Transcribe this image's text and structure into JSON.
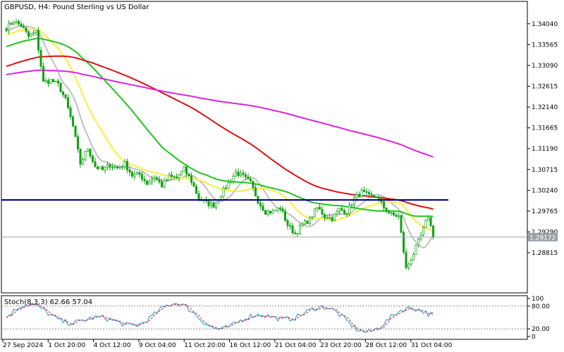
{
  "window_title": "GBPUSD, H4:  Pound Sterling vs US Dollar",
  "oscillator_title": "Stoch(8,3,3) 62.66 57.04",
  "colors": {
    "background": "#ffffff",
    "bull": "#15a315",
    "bear": "#15a315",
    "ma_fast": "#c0c0c0",
    "ma_yellow": "#ffeb3b",
    "ma_green": "#22c41f",
    "ma_red": "#dd1111",
    "ma_magenta": "#dd22dd",
    "support_line": "#000080",
    "price_line": "#9aa0a6",
    "stoch_main": "#1f8fd6",
    "stoch_signal": "#dd2222"
  },
  "chart_data": {
    "type": "candlestick",
    "symbol": "GBPUSD",
    "timeframe": "H4",
    "ylim": [
      1.279,
      1.3455
    ],
    "y_ticks": [
      "1.34040",
      "1.33565",
      "1.33090",
      "1.32615",
      "1.32140",
      "1.31665",
      "1.31190",
      "1.30715",
      "1.30240",
      "1.29765",
      "1.29290",
      "1.28815"
    ],
    "x_ticks": [
      "27 Sep 2024",
      "1 Oct 20:00",
      "4 Oct 12:00",
      "9 Oct 04:00",
      "11 Oct 20:00",
      "16 Oct 12:00",
      "21 Oct 04:00",
      "23 Oct 20:00",
      "28 Oct 12:00",
      "31 Oct 04:00"
    ],
    "current_price": "1.29172",
    "support_level": 1.3002,
    "anchors": [
      [
        0,
        1.3395
      ],
      [
        3,
        1.341
      ],
      [
        6,
        1.34
      ],
      [
        9,
        1.3375
      ],
      [
        12,
        1.3385
      ],
      [
        15,
        1.327
      ],
      [
        18,
        1.3275
      ],
      [
        21,
        1.3265
      ],
      [
        24,
        1.323
      ],
      [
        27,
        1.317
      ],
      [
        30,
        1.3085
      ],
      [
        33,
        1.312
      ],
      [
        36,
        1.3078
      ],
      [
        39,
        1.307
      ],
      [
        42,
        1.3082
      ],
      [
        45,
        1.3075
      ],
      [
        48,
        1.3085
      ],
      [
        51,
        1.3058
      ],
      [
        54,
        1.306
      ],
      [
        57,
        1.304
      ],
      [
        60,
        1.3055
      ],
      [
        63,
        1.3035
      ],
      [
        66,
        1.3055
      ],
      [
        69,
        1.3052
      ],
      [
        72,
        1.3072
      ],
      [
        75,
        1.3045
      ],
      [
        78,
        1.3005
      ],
      [
        81,
        1.2995
      ],
      [
        84,
        1.299
      ],
      [
        87,
        1.3015
      ],
      [
        90,
        1.304
      ],
      [
        93,
        1.3065
      ],
      [
        96,
        1.3055
      ],
      [
        99,
        1.304
      ],
      [
        102,
        1.3
      ],
      [
        105,
        1.2975
      ],
      [
        108,
        1.2975
      ],
      [
        111,
        1.2985
      ],
      [
        114,
        1.2945
      ],
      [
        117,
        1.2925
      ],
      [
        120,
        1.2945
      ],
      [
        123,
        1.2958
      ],
      [
        126,
        1.2985
      ],
      [
        129,
        1.2965
      ],
      [
        132,
        1.296
      ],
      [
        135,
        1.298
      ],
      [
        138,
        1.2975
      ],
      [
        141,
        1.3005
      ],
      [
        144,
        1.302
      ],
      [
        147,
        1.301
      ],
      [
        150,
        1.301
      ],
      [
        153,
        1.2985
      ],
      [
        156,
        1.2968
      ],
      [
        159,
        1.2965
      ],
      [
        162,
        1.2845
      ],
      [
        165,
        1.288
      ],
      [
        168,
        1.292
      ],
      [
        171,
        1.2965
      ],
      [
        173,
        1.2918
      ]
    ],
    "n_bars": 174,
    "moving_averages": [
      {
        "color_key": "ma_fast",
        "period": 10
      },
      {
        "color_key": "ma_yellow",
        "period": 21
      },
      {
        "color_key": "ma_green",
        "period": 50
      },
      {
        "color_key": "ma_red",
        "period": 100
      },
      {
        "color_key": "ma_magenta",
        "period": 200
      }
    ],
    "stochastic": {
      "k_period": 8,
      "d_period": 3,
      "slowing": 3,
      "main": 62.66,
      "signal": 57.04,
      "levels": [
        20,
        80
      ],
      "ticks": [
        "100",
        "80.00",
        "20.00",
        "0"
      ]
    }
  }
}
